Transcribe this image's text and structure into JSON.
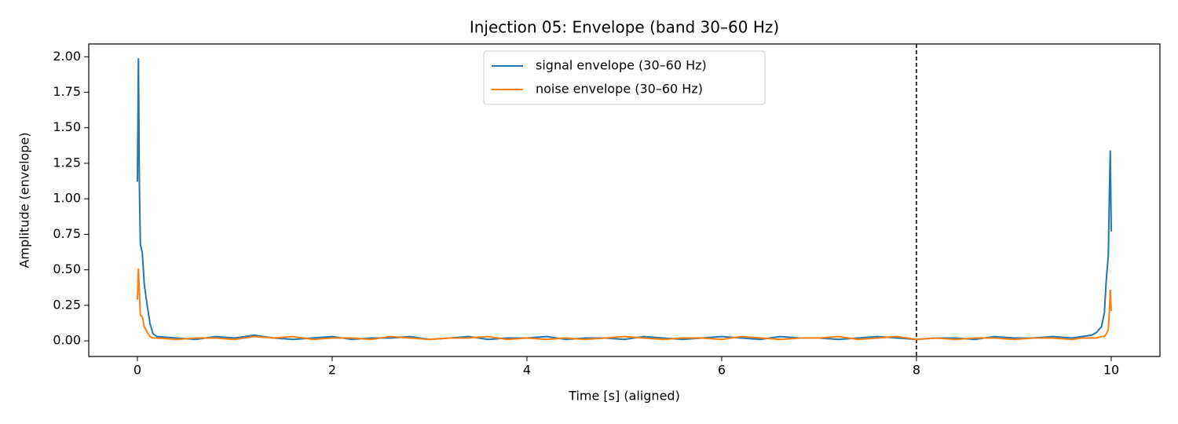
{
  "chart_data": {
    "type": "line",
    "title": "Injection 05: Envelope (band 30–60 Hz)",
    "x_label": "Time [s] (aligned)",
    "y_label": "Amplitude (envelope)",
    "x": [
      0,
      0.01,
      0.02,
      0.03,
      0.05,
      0.07,
      0.1,
      0.13,
      0.16,
      0.2,
      0.4,
      0.6,
      0.8,
      1.0,
      1.2,
      1.4,
      1.6,
      1.8,
      2.0,
      2.2,
      2.4,
      2.6,
      2.8,
      3.0,
      3.2,
      3.4,
      3.6,
      3.8,
      4.0,
      4.2,
      4.4,
      4.6,
      4.8,
      5.0,
      5.2,
      5.4,
      5.6,
      5.8,
      6.0,
      6.2,
      6.4,
      6.6,
      6.8,
      7.0,
      7.2,
      7.4,
      7.6,
      7.8,
      8.0,
      8.2,
      8.4,
      8.6,
      8.8,
      9.0,
      9.2,
      9.4,
      9.6,
      9.7,
      9.8,
      9.85,
      9.9,
      9.93,
      9.95,
      9.97,
      9.98,
      9.99,
      10.0
    ],
    "series": [
      {
        "name": "signal envelope (30–60 Hz)",
        "color": "#1f77b4",
        "values": [
          1.12,
          1.99,
          1.1,
          0.68,
          0.62,
          0.4,
          0.25,
          0.12,
          0.05,
          0.03,
          0.02,
          0.01,
          0.03,
          0.02,
          0.04,
          0.02,
          0.01,
          0.02,
          0.03,
          0.01,
          0.02,
          0.02,
          0.03,
          0.01,
          0.02,
          0.03,
          0.01,
          0.02,
          0.02,
          0.03,
          0.01,
          0.02,
          0.02,
          0.01,
          0.03,
          0.02,
          0.01,
          0.02,
          0.03,
          0.02,
          0.01,
          0.03,
          0.02,
          0.02,
          0.01,
          0.02,
          0.03,
          0.02,
          0.01,
          0.02,
          0.02,
          0.01,
          0.03,
          0.02,
          0.02,
          0.03,
          0.02,
          0.03,
          0.04,
          0.06,
          0.1,
          0.2,
          0.44,
          0.6,
          1.0,
          1.34,
          0.77
        ]
      },
      {
        "name": "noise envelope (30–60 Hz)",
        "color": "#ff7f0e",
        "values": [
          0.29,
          0.51,
          0.35,
          0.18,
          0.17,
          0.1,
          0.06,
          0.03,
          0.02,
          0.02,
          0.01,
          0.02,
          0.02,
          0.01,
          0.03,
          0.02,
          0.03,
          0.01,
          0.02,
          0.02,
          0.01,
          0.03,
          0.02,
          0.01,
          0.02,
          0.02,
          0.03,
          0.01,
          0.02,
          0.01,
          0.02,
          0.01,
          0.02,
          0.03,
          0.02,
          0.01,
          0.02,
          0.02,
          0.01,
          0.03,
          0.02,
          0.01,
          0.02,
          0.02,
          0.03,
          0.01,
          0.02,
          0.03,
          0.01,
          0.02,
          0.01,
          0.02,
          0.02,
          0.01,
          0.02,
          0.02,
          0.01,
          0.02,
          0.02,
          0.02,
          0.03,
          0.03,
          0.05,
          0.08,
          0.2,
          0.36,
          0.21
        ]
      }
    ],
    "vlines": [
      8
    ],
    "xlim": [
      -0.5,
      10.5
    ],
    "ylim": [
      -0.11,
      2.09
    ],
    "xticks": [
      0,
      2,
      4,
      6,
      8,
      10
    ],
    "yticks": [
      {
        "value": 0,
        "label": "0.00"
      },
      {
        "value": 0.25,
        "label": "0.25"
      },
      {
        "value": 0.5,
        "label": "0.50"
      },
      {
        "value": 0.75,
        "label": "0.75"
      },
      {
        "value": 1,
        "label": "1.00"
      },
      {
        "value": 1.25,
        "label": "1.25"
      },
      {
        "value": 1.5,
        "label": "1.50"
      },
      {
        "value": 1.75,
        "label": "1.75"
      },
      {
        "value": 2,
        "label": "2.00"
      }
    ],
    "legend": "upper center",
    "grid": false
  }
}
